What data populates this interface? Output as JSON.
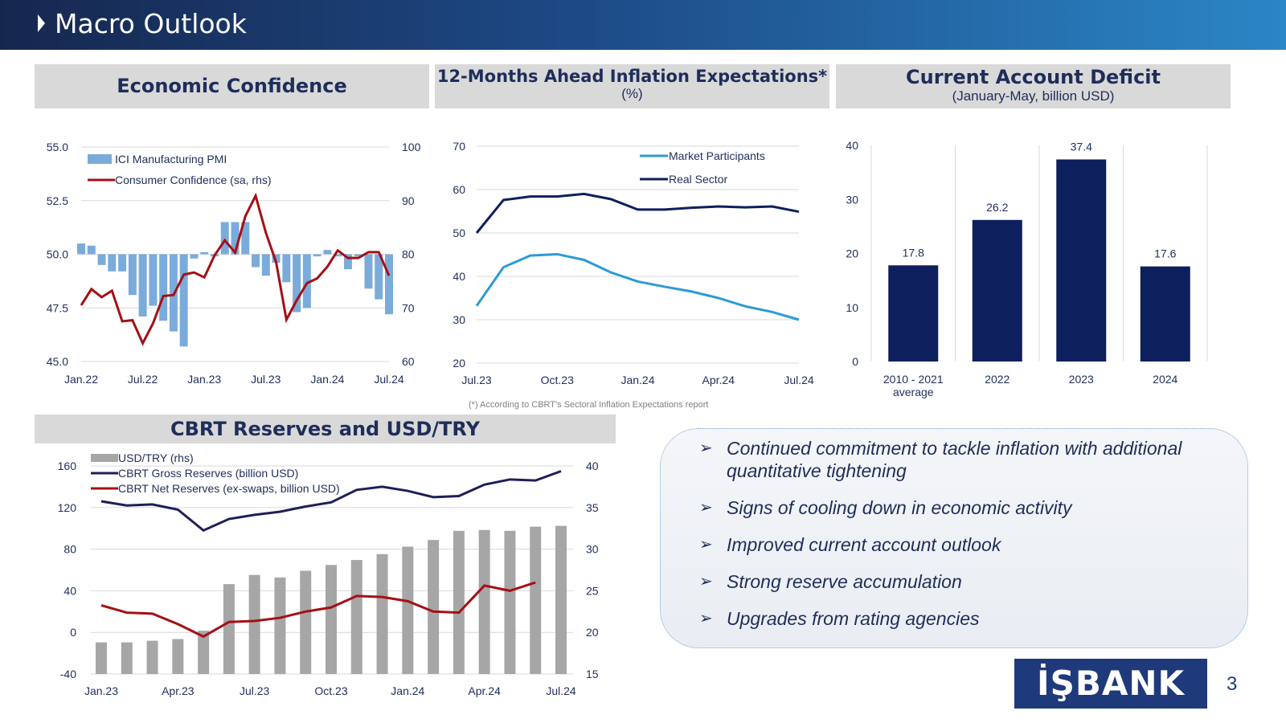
{
  "header": {
    "title": "Macro Outlook"
  },
  "panels": {
    "economic_confidence": {
      "title": "Economic Confidence"
    },
    "inflation_expectations": {
      "title": "12-Months Ahead Inflation Expectations*",
      "subtitle": "(%)"
    },
    "current_account": {
      "title": "Current Account Deficit",
      "subtitle": "(January-May, billion USD)"
    },
    "cbrt_reserves": {
      "title": "CBRT Reserves and USD/TRY"
    }
  },
  "footnote": "(*) According to CBRT's Sectoral Inflation Expectations report",
  "bullets": [
    "Continued commitment to tackle inflation with additional quantitative tightening",
    "Signs of cooling down in economic activity",
    "Improved current account outlook",
    "Strong reserve accumulation",
    "Upgrades from rating agencies"
  ],
  "bullet_marker": "➢",
  "logo_text": "İŞBANK",
  "page_number": "3",
  "colors": {
    "navy": "#0d1f5c",
    "red": "#a50f15",
    "lightblue": "#7aabdb",
    "skyblue": "#2b9bd6",
    "gray": "#a6a6a6"
  },
  "chart_data": [
    {
      "id": "econ",
      "type": "bar+line",
      "title": "Economic Confidence",
      "x_tick_labels": [
        "Jan.22",
        "Jul.22",
        "Jan.23",
        "Jul.23",
        "Jan.24",
        "Jul.24"
      ],
      "y_left": {
        "min": 45.0,
        "max": 55.0,
        "ticks": [
          "55.0",
          "52.5",
          "50.0",
          "47.5",
          "45.0"
        ],
        "tick_values": [
          55,
          52.5,
          50,
          47.5,
          45
        ]
      },
      "y_right": {
        "min": 60,
        "max": 100,
        "ticks": [
          "100",
          "90",
          "80",
          "70",
          "60"
        ],
        "tick_values": [
          100,
          90,
          80,
          70,
          60
        ]
      },
      "series": [
        {
          "name": "ICI Manufacturing PMI",
          "kind": "bar",
          "axis": "left",
          "baseline": 50,
          "values": [
            50.5,
            50.4,
            49.5,
            49.2,
            49.2,
            48.1,
            47.1,
            47.6,
            46.9,
            46.4,
            45.7,
            49.8,
            50.1,
            49.9,
            51.5,
            51.5,
            51.5,
            49.4,
            49.0,
            49.6,
            48.7,
            47.3,
            47.5,
            49.9,
            50.2,
            49.9,
            49.3,
            49.9,
            48.4,
            47.9,
            47.2
          ]
        },
        {
          "name": "Consumer Confidence (sa, rhs)",
          "kind": "line",
          "axis": "right",
          "values": [
            70.5,
            73.5,
            72.0,
            73.2,
            67.5,
            67.7,
            63.4,
            67.1,
            72.2,
            72.4,
            76.2,
            76.6,
            75.7,
            79.8,
            82.6,
            80.3,
            87.1,
            90.9,
            84.0,
            78.5,
            67.8,
            71.4,
            74.6,
            75.5,
            77.7,
            80.7,
            79.3,
            79.3,
            80.4,
            80.4,
            76.0
          ]
        }
      ]
    },
    {
      "id": "infl",
      "type": "line",
      "title": "12-Months Ahead Inflation Expectations*",
      "x_tick_labels": [
        "Jul.23",
        "Oct.23",
        "Jan.24",
        "Apr.24",
        "Jul.24"
      ],
      "y": {
        "min": 20,
        "max": 70,
        "ticks": [
          "70",
          "60",
          "50",
          "40",
          "30",
          "20"
        ],
        "tick_values": [
          70,
          60,
          50,
          40,
          30,
          20
        ]
      },
      "series": [
        {
          "name": "Market Participants",
          "values": [
            33.2,
            42.1,
            44.8,
            45.1,
            43.8,
            40.9,
            38.8,
            37.6,
            36.5,
            35.0,
            33.1,
            31.8,
            30.0
          ]
        },
        {
          "name": "Real Sector",
          "values": [
            50.0,
            57.6,
            58.4,
            58.4,
            59.0,
            57.8,
            55.4,
            55.4,
            55.8,
            56.1,
            55.9,
            56.1,
            54.9
          ]
        }
      ]
    },
    {
      "id": "cad",
      "type": "bar",
      "title": "Current Account Deficit",
      "categories": [
        "2010 - 2021",
        "2022",
        "2023",
        "2024"
      ],
      "category_sublabels": [
        "average",
        "",
        "",
        ""
      ],
      "values": [
        17.8,
        26.2,
        37.4,
        17.6
      ],
      "value_labels": [
        "17.8",
        "26.2",
        "37.4",
        "17.6"
      ],
      "y": {
        "min": 0,
        "max": 40,
        "ticks": [
          "40",
          "30",
          "20",
          "10",
          "0"
        ],
        "tick_values": [
          40,
          30,
          20,
          10,
          0
        ]
      }
    },
    {
      "id": "cbrt",
      "type": "bar+line",
      "title": "CBRT Reserves and USD/TRY",
      "x_tick_labels": [
        "Jan.23",
        "Apr.23",
        "Jul.23",
        "Oct.23",
        "Jan.24",
        "Apr.24",
        "Jul.24"
      ],
      "y_left": {
        "min": -40,
        "max": 160,
        "ticks": [
          "160",
          "120",
          "80",
          "40",
          "0",
          "-40"
        ],
        "tick_values": [
          160,
          120,
          80,
          40,
          0,
          -40
        ]
      },
      "y_right": {
        "min": 15,
        "max": 40,
        "ticks": [
          "40",
          "35",
          "30",
          "25",
          "20",
          "15"
        ],
        "tick_values": [
          40,
          35,
          30,
          25,
          20,
          15
        ]
      },
      "series": [
        {
          "name": "USD/TRY (rhs)",
          "kind": "bar",
          "axis": "right",
          "values": [
            18.8,
            18.8,
            19.0,
            19.2,
            20.2,
            25.8,
            26.9,
            26.6,
            27.4,
            28.1,
            28.7,
            29.4,
            30.3,
            31.1,
            32.2,
            32.3,
            32.2,
            32.7,
            32.8
          ]
        },
        {
          "name": "CBRT Gross Reserves (billion USD)",
          "kind": "line",
          "axis": "left",
          "values": [
            126,
            122,
            123,
            118,
            98,
            109,
            113,
            116,
            121,
            125,
            137,
            140,
            136,
            130,
            131,
            142,
            147,
            146,
            155
          ]
        },
        {
          "name": "CBRT Net Reserves (ex-swaps, billion USD)",
          "kind": "line",
          "axis": "left",
          "values": [
            26,
            19,
            18,
            8,
            -4,
            10,
            11,
            14,
            20,
            24,
            35,
            34,
            30,
            20,
            19,
            45,
            40,
            48
          ]
        }
      ]
    }
  ]
}
